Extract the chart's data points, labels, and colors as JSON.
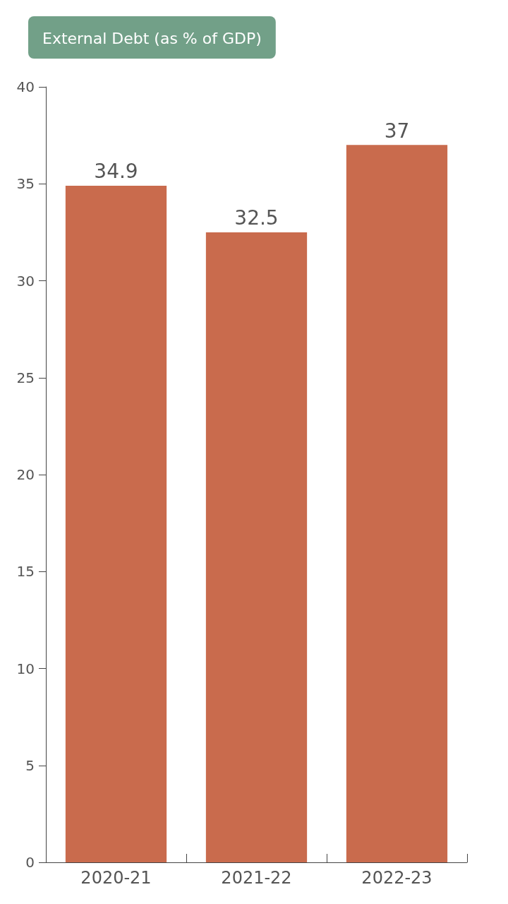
{
  "chart_data": {
    "type": "bar",
    "title": "External Debt (as % of GDP)",
    "categories": [
      "2020-21",
      "2021-22",
      "2022-23"
    ],
    "values": [
      34.9,
      32.5,
      37
    ],
    "color": "#c96b4d",
    "ylim": [
      0,
      40
    ],
    "yticks": [
      0,
      5,
      10,
      15,
      20,
      25,
      30,
      35,
      40
    ],
    "data_labels": true,
    "grid": false
  }
}
